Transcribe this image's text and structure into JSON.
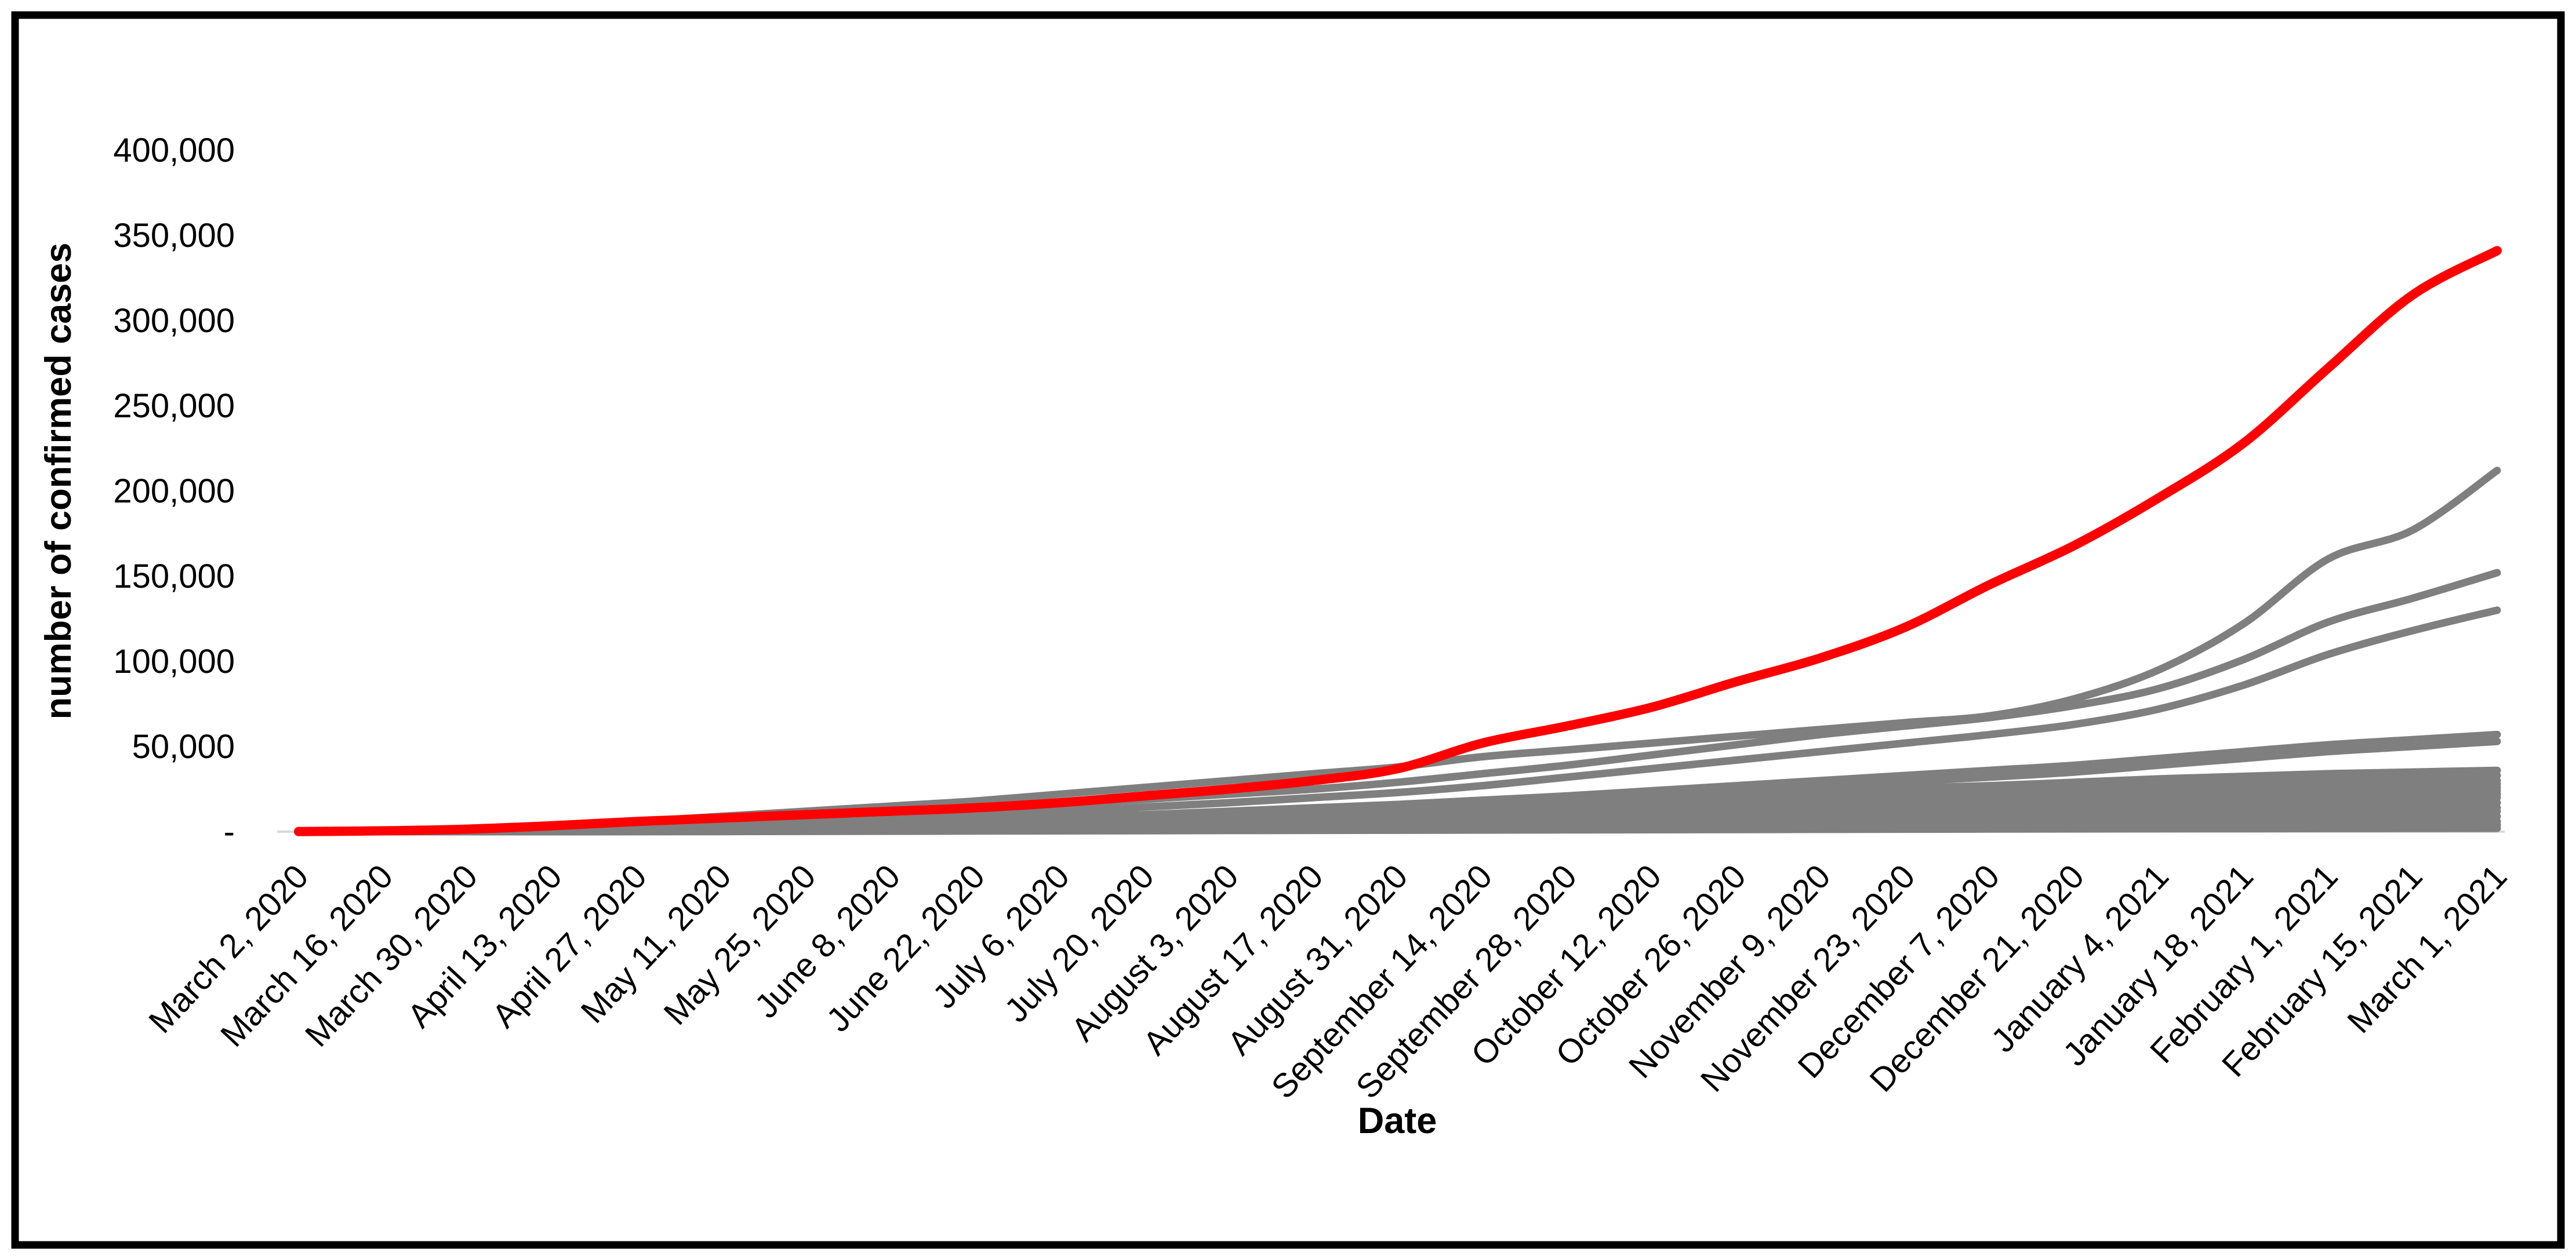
{
  "figure": {
    "background_color": "#FFFFFF",
    "border_color": "#000000"
  },
  "chart_data": {
    "type": "line",
    "title": "",
    "xlabel": "Date",
    "ylabel": "number of confirmed cases",
    "ylim": [
      0,
      400000
    ],
    "grid": false,
    "legend": "none",
    "highlight_color": "#FF0000",
    "default_series_color": "#7F7F7F",
    "y_ticks": {
      "values": [
        0,
        50000,
        100000,
        150000,
        200000,
        250000,
        300000,
        350000,
        400000
      ],
      "labels": [
        "-",
        "50,000",
        "100,000",
        "150,000",
        "200,000",
        "250,000",
        "300,000",
        "350,000",
        "400,000"
      ]
    },
    "x_tick_labels": [
      "March 2, 2020",
      "March 16, 2020",
      "March 30, 2020",
      "April 13, 2020",
      "April 27, 2020",
      "May 11, 2020",
      "May 25, 2020",
      "June 8, 2020",
      "June 22, 2020",
      "July 6, 2020",
      "July 20, 2020",
      "August 3, 2020",
      "August 17, 2020",
      "August 31, 2020",
      "September 14, 2020",
      "September 28, 2020",
      "October 12, 2020",
      "October 26, 2020",
      "November 9, 2020",
      "November 23, 2020",
      "December 7, 2020",
      "December 21, 2020",
      "January 4, 2021",
      "January 18, 2021",
      "February 1, 2021",
      "February 15, 2021",
      "March 1, 2021"
    ],
    "series": [
      {
        "name": "series-21",
        "role": "default",
        "values": [
          0,
          0,
          0,
          0,
          50,
          100,
          200,
          300,
          400,
          500,
          600,
          700,
          800,
          900,
          1000,
          1100,
          1200,
          1300,
          1400,
          1500,
          1600,
          1700,
          1800,
          1850,
          1900,
          1950,
          2000
        ]
      },
      {
        "name": "series-20",
        "role": "default",
        "values": [
          0,
          0,
          0,
          50,
          150,
          250,
          350,
          500,
          600,
          750,
          900,
          1100,
          1300,
          1500,
          1700,
          1900,
          2100,
          2400,
          2600,
          2800,
          3000,
          3200,
          3400,
          3600,
          3800,
          3900,
          4000
        ]
      },
      {
        "name": "series-19",
        "role": "default",
        "values": [
          0,
          0,
          0,
          100,
          200,
          350,
          500,
          700,
          900,
          1100,
          1350,
          1600,
          1900,
          2200,
          2500,
          2800,
          3200,
          3500,
          3900,
          4200,
          4600,
          4900,
          5200,
          5500,
          5700,
          5900,
          6000
        ]
      },
      {
        "name": "series-18",
        "role": "default",
        "values": [
          0,
          0,
          50,
          150,
          300,
          500,
          750,
          1000,
          1300,
          1600,
          2000,
          2400,
          2800,
          3200,
          3700,
          4200,
          4700,
          5200,
          5700,
          6200,
          6700,
          7200,
          7700,
          8100,
          8500,
          8800,
          9000
        ]
      },
      {
        "name": "series-17",
        "role": "default",
        "values": [
          0,
          0,
          50,
          200,
          400,
          650,
          1000,
          1300,
          1700,
          2100,
          2600,
          3100,
          3700,
          4300,
          4900,
          5500,
          6200,
          6900,
          7500,
          8200,
          8800,
          9500,
          10100,
          10800,
          11200,
          11600,
          12000
        ]
      },
      {
        "name": "series-16",
        "role": "default",
        "values": [
          0,
          0,
          100,
          250,
          500,
          800,
          1200,
          1600,
          2000,
          2500,
          3000,
          3600,
          4300,
          5000,
          5800,
          6500,
          7200,
          8000,
          8800,
          9500,
          10200,
          11000,
          11800,
          12500,
          13000,
          13500,
          14000
        ]
      },
      {
        "name": "series-15",
        "role": "default",
        "values": [
          0,
          0,
          100,
          300,
          600,
          1000,
          1400,
          1900,
          2400,
          3000,
          3700,
          4400,
          5200,
          6000,
          7000,
          7800,
          8700,
          9600,
          10500,
          11500,
          12300,
          13200,
          14000,
          15000,
          15800,
          16400,
          17000
        ]
      },
      {
        "name": "series-14",
        "role": "default",
        "values": [
          0,
          0,
          100,
          350,
          700,
          1100,
          1600,
          2200,
          2800,
          3500,
          4200,
          5000,
          6000,
          7000,
          8000,
          9000,
          10000,
          11000,
          12000,
          13000,
          14500,
          15500,
          16500,
          17500,
          18500,
          19200,
          20000
        ]
      },
      {
        "name": "series-13",
        "role": "default",
        "values": [
          0,
          0,
          150,
          400,
          800,
          1300,
          1900,
          2500,
          3200,
          4000,
          4800,
          5800,
          7000,
          8000,
          9000,
          10000,
          11500,
          12500,
          13500,
          15000,
          16000,
          17000,
          18000,
          19000,
          20000,
          21000,
          22000
        ]
      },
      {
        "name": "series-12",
        "role": "default",
        "values": [
          0,
          0,
          200,
          500,
          1000,
          1500,
          2100,
          2800,
          3600,
          4500,
          5500,
          6500,
          7500,
          9000,
          10000,
          11500,
          13000,
          14000,
          15000,
          16500,
          17500,
          19000,
          20000,
          21000,
          22000,
          23000,
          24000
        ]
      },
      {
        "name": "series-11",
        "role": "default",
        "values": [
          0,
          50,
          200,
          500,
          1000,
          1700,
          2400,
          3200,
          4000,
          5000,
          6000,
          7200,
          8500,
          10000,
          11500,
          13000,
          14000,
          15500,
          17000,
          18000,
          19000,
          20500,
          22000,
          23000,
          24000,
          25000,
          26000
        ]
      },
      {
        "name": "series-10",
        "role": "default",
        "values": [
          0,
          50,
          250,
          600,
          1200,
          2000,
          2800,
          3600,
          4500,
          5500,
          6800,
          8000,
          9500,
          11000,
          12500,
          14000,
          15500,
          17000,
          18000,
          19500,
          21000,
          22000,
          23500,
          25000,
          26000,
          27000,
          28000
        ]
      },
      {
        "name": "series-09",
        "role": "default",
        "values": [
          0,
          50,
          300,
          700,
          1400,
          2200,
          3000,
          4000,
          5000,
          6000,
          7500,
          9000,
          10500,
          12000,
          13500,
          15000,
          16500,
          18000,
          19500,
          21000,
          22500,
          24000,
          25500,
          27000,
          28000,
          29000,
          30000
        ]
      },
      {
        "name": "series-08",
        "role": "default",
        "values": [
          0,
          100,
          300,
          800,
          1600,
          2500,
          3400,
          4300,
          5500,
          7000,
          8500,
          10000,
          11500,
          13000,
          14500,
          16000,
          18000,
          20000,
          22000,
          23500,
          25000,
          27000,
          28500,
          30000,
          31000,
          32000,
          33000
        ]
      },
      {
        "name": "series-07",
        "role": "default",
        "values": [
          0,
          100,
          400,
          1000,
          2000,
          3000,
          4000,
          5000,
          6500,
          8000,
          9500,
          11000,
          12500,
          14000,
          15500,
          17500,
          19500,
          21500,
          23500,
          25500,
          27000,
          29000,
          31000,
          32500,
          34000,
          35000,
          36000
        ]
      },
      {
        "name": "series-06",
        "role": "default",
        "values": [
          0,
          50,
          300,
          800,
          1500,
          2500,
          3500,
          4500,
          6000,
          7500,
          9000,
          11000,
          13000,
          15000,
          17000,
          19000,
          21500,
          24000,
          27000,
          29500,
          32000,
          35000,
          39000,
          43000,
          47000,
          50000,
          53000
        ]
      },
      {
        "name": "series-05",
        "role": "default",
        "values": [
          0,
          100,
          400,
          1000,
          2000,
          3000,
          4000,
          5500,
          7000,
          8500,
          10000,
          12000,
          14000,
          16000,
          18500,
          21000,
          24000,
          27000,
          30000,
          33000,
          36000,
          39000,
          43000,
          47000,
          51000,
          54000,
          57000
        ]
      },
      {
        "name": "series-04",
        "role": "default",
        "values": [
          0,
          100,
          500,
          1500,
          3000,
          4500,
          6000,
          8000,
          10000,
          12000,
          14500,
          17000,
          20000,
          23000,
          27000,
          32000,
          37000,
          42000,
          47000,
          52000,
          57000,
          63000,
          72000,
          86000,
          104000,
          118000,
          130000
        ]
      },
      {
        "name": "series-03",
        "role": "default",
        "values": [
          0,
          100,
          800,
          2000,
          4000,
          6000,
          8000,
          10000,
          13000,
          16000,
          19000,
          22000,
          25000,
          29000,
          34000,
          39000,
          45000,
          51000,
          57000,
          62000,
          67000,
          74000,
          84000,
          101000,
          123000,
          137000,
          152000
        ]
      },
      {
        "name": "series-02",
        "role": "default",
        "values": [
          0,
          200,
          1000,
          3000,
          6000,
          9000,
          12000,
          15000,
          18000,
          22000,
          26000,
          30000,
          34000,
          38000,
          44000,
          48000,
          52000,
          56000,
          60000,
          64000,
          68000,
          78000,
          95000,
          122000,
          160000,
          177000,
          212000
        ]
      },
      {
        "name": "series-01-highlighted",
        "role": "highlight",
        "values": [
          100,
          500,
          1500,
          3500,
          6000,
          8000,
          10000,
          12000,
          14000,
          17000,
          21000,
          25000,
          30000,
          37000,
          52000,
          62000,
          73000,
          88000,
          102000,
          120000,
          145000,
          168000,
          196000,
          228000,
          272000,
          315000,
          341000
        ]
      }
    ]
  }
}
